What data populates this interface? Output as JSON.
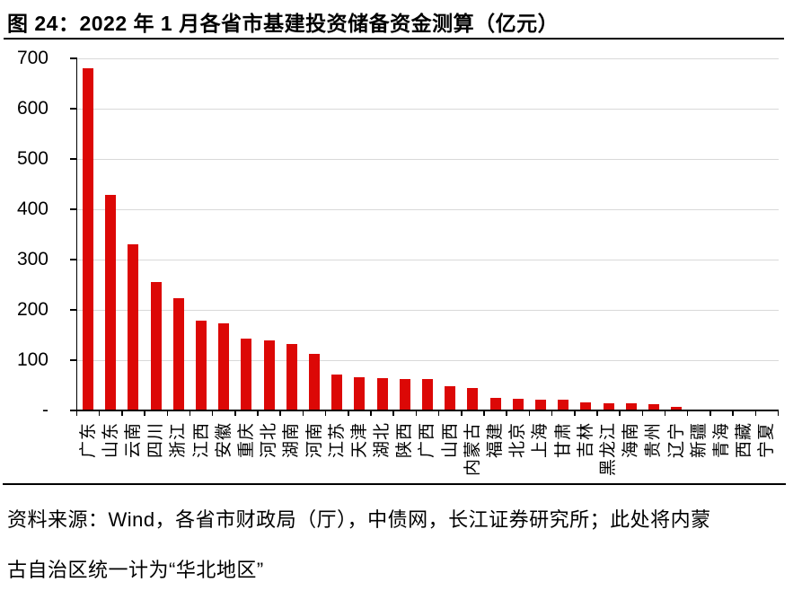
{
  "page": {
    "title": "图 24：2022 年 1 月各省市基建投资储备资金测算（亿元）",
    "source_line1": "资料来源：Wind，各省市财政局（厅），中债网，长江证券研究所；此处将内蒙",
    "source_line2": "古自治区统一计为“华北地区”"
  },
  "chart_data": {
    "type": "bar",
    "title": "2022 年 1 月各省市基建投资储备资金测算（亿元）",
    "unit": "亿元",
    "categories": [
      "广东",
      "山东",
      "云南",
      "四川",
      "浙江",
      "江西",
      "安徽",
      "重庆",
      "河北",
      "湖南",
      "河南",
      "江苏",
      "天津",
      "湖北",
      "陕西",
      "广西",
      "山西",
      "内蒙古",
      "福建",
      "北京",
      "上海",
      "甘肃",
      "吉林",
      "黑龙江",
      "海南",
      "贵州",
      "辽宁",
      "新疆",
      "青海",
      "西藏",
      "宁夏"
    ],
    "values": [
      680,
      429,
      331,
      256,
      224,
      179,
      173,
      143,
      140,
      133,
      113,
      72,
      66,
      64,
      63,
      62,
      48,
      44,
      25,
      23,
      22,
      21,
      16,
      15,
      15,
      13,
      8,
      1,
      1,
      0.5,
      0.5
    ],
    "xlabel": "",
    "ylabel": "",
    "ylim": [
      0,
      700
    ],
    "ytick_interval": 100,
    "ytick_labels": [
      "700",
      "600",
      "500",
      "400",
      "300",
      "200",
      "100",
      "-"
    ],
    "zero_tick_label": "-",
    "grid": true,
    "legend_position": "none",
    "bar_color": "#DC0806",
    "gridline_color": "#D9D9D9",
    "axis_color": "#000000"
  }
}
